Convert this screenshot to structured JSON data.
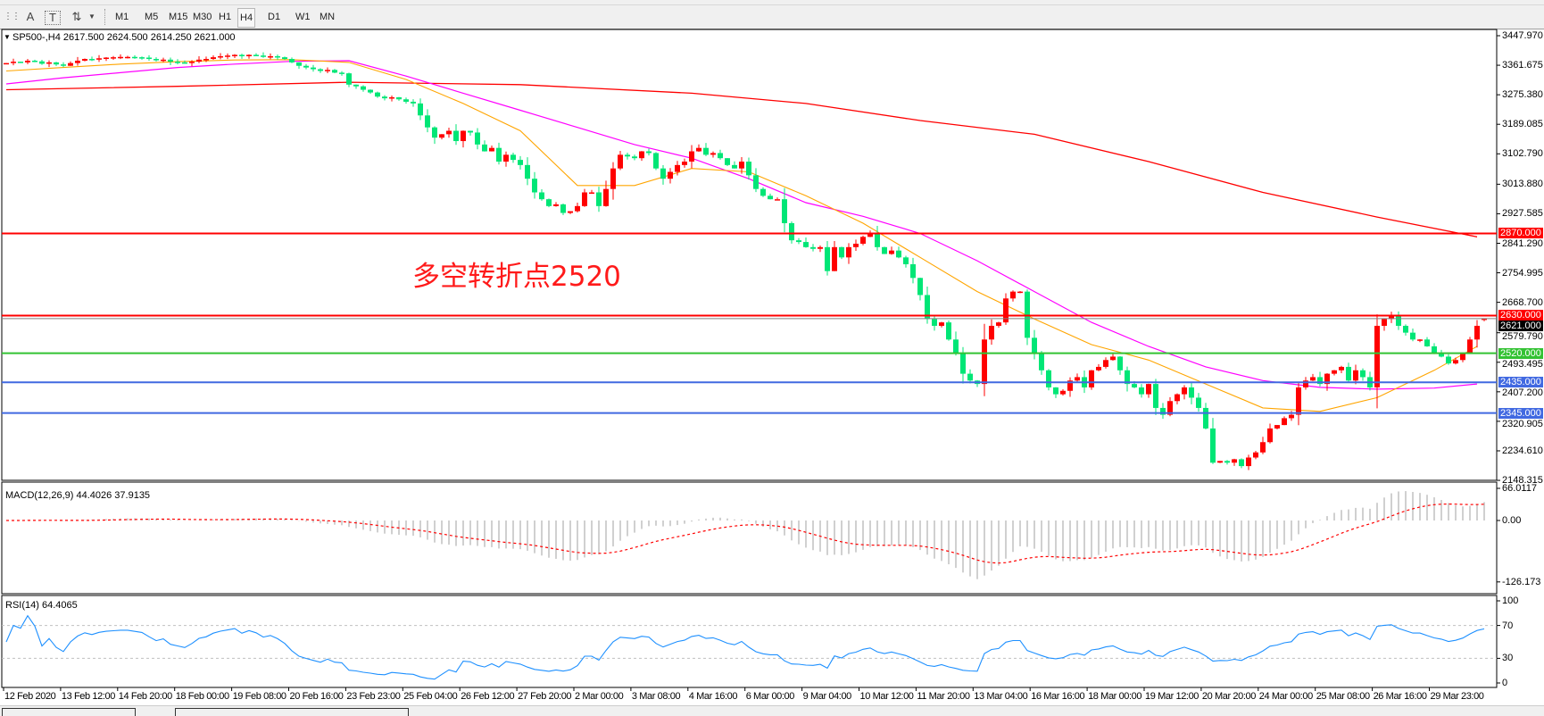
{
  "toolbar": {
    "icons": [
      "grid-icon",
      "text-a-icon",
      "text-label-icon",
      "arrows-icon",
      "dropdown-icon"
    ],
    "text_a": "A",
    "text_t": "T",
    "timeframes": [
      "M1",
      "M5",
      "M15",
      "M30",
      "H1",
      "H4",
      "D1",
      "W1",
      "MN"
    ],
    "active_timeframe": "H4"
  },
  "chart": {
    "title": "SP500-,H4  2617.500 2624.500 2614.250 2621.000",
    "annotation": "多空转折点2520",
    "price_axis": [
      "3447.970",
      "3361.675",
      "3275.380",
      "3189.085",
      "3102.790",
      "3013.880",
      "2927.585",
      "2841.290",
      "2754.995",
      "2668.700",
      "2579.790",
      "2493.495",
      "2407.200",
      "2320.905",
      "2234.610",
      "2148.315"
    ],
    "levels": [
      {
        "label": "2870.000",
        "price": 2870,
        "color": "#ff0000"
      },
      {
        "label": "2630.000",
        "price": 2630,
        "color": "#ff0000"
      },
      {
        "label": "2621.000",
        "price": 2621,
        "color": "#808080"
      },
      {
        "label": "2520.000",
        "price": 2520,
        "color": "#33c233"
      },
      {
        "label": "2435.000",
        "price": 2435,
        "color": "#4169e1"
      },
      {
        "label": "2345.000",
        "price": 2345,
        "color": "#4169e1"
      }
    ],
    "colors": {
      "bull": "#ff0000",
      "bear": "#00e676",
      "ma_fast": "#ffa500",
      "ma_mid": "#ff00ff",
      "ma_slow": "#ff0000",
      "rsi": "#1e90ff",
      "macd_signal": "#ff0000",
      "macd_hist": "#c0c0c0"
    },
    "dates": [
      "12 Feb 2020",
      "13 Feb 12:00",
      "14 Feb 20:00",
      "18 Feb 00:00",
      "19 Feb 08:00",
      "20 Feb 16:00",
      "23 Feb 23:00",
      "25 Feb 04:00",
      "26 Feb 12:00",
      "27 Feb 20:00",
      "2 Mar 00:00",
      "3 Mar 08:00",
      "4 Mar 16:00",
      "6 Mar 00:00",
      "9 Mar 04:00",
      "10 Mar 12:00",
      "11 Mar 20:00",
      "13 Mar 04:00",
      "16 Mar 16:00",
      "18 Mar 00:00",
      "19 Mar 12:00",
      "20 Mar 20:00",
      "24 Mar 00:00",
      "25 Mar 08:00",
      "26 Mar 16:00",
      "29 Mar 23:00"
    ]
  },
  "macd": {
    "label": "MACD(12,26,9) 44.4026 37.9135",
    "axis": [
      "66.0117",
      "0.00",
      "-126.173"
    ]
  },
  "rsi": {
    "label": "RSI(14) 64.4065",
    "axis": [
      "100",
      "70",
      "30",
      "0"
    ]
  },
  "chart_data": {
    "type": "candlestick",
    "symbol": "SP500-",
    "timeframe": "H4",
    "closes": [
      3368,
      3372,
      3370,
      3375,
      3373,
      3366,
      3370,
      3364,
      3360,
      3368,
      3375,
      3380,
      3378,
      3382,
      3384,
      3385,
      3386,
      3386,
      3385,
      3384,
      3380,
      3376,
      3378,
      3372,
      3370,
      3368,
      3372,
      3378,
      3380,
      3385,
      3388,
      3390,
      3392,
      3388,
      3392,
      3390,
      3386,
      3388,
      3385,
      3380,
      3370,
      3360,
      3355,
      3350,
      3345,
      3348,
      3340,
      3338,
      3305,
      3300,
      3290,
      3282,
      3270,
      3265,
      3268,
      3262,
      3255,
      3250,
      3215,
      3180,
      3150,
      3160,
      3170,
      3140,
      3170,
      3165,
      3130,
      3110,
      3120,
      3080,
      3100,
      3085,
      3070,
      3030,
      2990,
      2970,
      2950,
      2955,
      2930,
      2935,
      2950,
      2990,
      2990,
      2950,
      3000,
      3060,
      3100,
      3095,
      3090,
      3110,
      3105,
      3060,
      3030,
      3050,
      3070,
      3080,
      3110,
      3120,
      3100,
      3105,
      3090,
      3070,
      3060,
      3080,
      3040,
      3000,
      2980,
      2970,
      2970,
      2900,
      2850,
      2845,
      2830,
      2825,
      2830,
      2760,
      2830,
      2800,
      2830,
      2840,
      2860,
      2870,
      2830,
      2810,
      2820,
      2800,
      2780,
      2740,
      2690,
      2620,
      2600,
      2610,
      2560,
      2520,
      2460,
      2440,
      2430,
      2560,
      2600,
      2610,
      2680,
      2700,
      2700,
      2565,
      2520,
      2470,
      2420,
      2400,
      2410,
      2440,
      2450,
      2420,
      2470,
      2480,
      2500,
      2510,
      2470,
      2430,
      2420,
      2400,
      2430,
      2360,
      2340,
      2380,
      2400,
      2420,
      2390,
      2360,
      2300,
      2200,
      2205,
      2200,
      2210,
      2190,
      2215,
      2230,
      2260,
      2300,
      2310,
      2330,
      2340,
      2420,
      2440,
      2450,
      2430,
      2460,
      2470,
      2480,
      2440,
      2470,
      2450,
      2420,
      2600,
      2620,
      2630,
      2600,
      2580,
      2560,
      2560,
      2540,
      2520,
      2510,
      2490,
      2500,
      2520,
      2560,
      2600,
      2621
    ],
    "ma_fast": {
      "bar": [
        0,
        8,
        16,
        24,
        32,
        40,
        48,
        56,
        64,
        72,
        80,
        88,
        96,
        104,
        112,
        120,
        128,
        136,
        144,
        152,
        160,
        168,
        176,
        184,
        192,
        200,
        206
      ],
      "value": [
        3345,
        3355,
        3365,
        3372,
        3377,
        3378,
        3370,
        3320,
        3250,
        3170,
        3010,
        3010,
        3060,
        3050,
        2980,
        2900,
        2800,
        2700,
        2620,
        2545,
        2500,
        2430,
        2360,
        2350,
        2390,
        2470,
        2540
      ]
    },
    "ma_mid": {
      "bar": [
        0,
        8,
        16,
        24,
        32,
        40,
        48,
        56,
        64,
        72,
        80,
        88,
        96,
        104,
        112,
        120,
        128,
        136,
        144,
        152,
        160,
        168,
        176,
        184,
        192,
        200,
        206
      ],
      "value": [
        3307,
        3325,
        3340,
        3355,
        3365,
        3373,
        3375,
        3330,
        3280,
        3230,
        3180,
        3130,
        3090,
        3030,
        2960,
        2920,
        2870,
        2790,
        2700,
        2610,
        2540,
        2480,
        2440,
        2420,
        2415,
        2418,
        2430
      ]
    },
    "ma_slow": {
      "bar": [
        0,
        24,
        48,
        72,
        96,
        112,
        128,
        144,
        160,
        176,
        192,
        206
      ],
      "value": [
        3290,
        3300,
        3312,
        3305,
        3280,
        3250,
        3200,
        3160,
        3080,
        2990,
        2918,
        2860
      ]
    },
    "ylim": [
      2148.315,
      3447.97
    ]
  }
}
